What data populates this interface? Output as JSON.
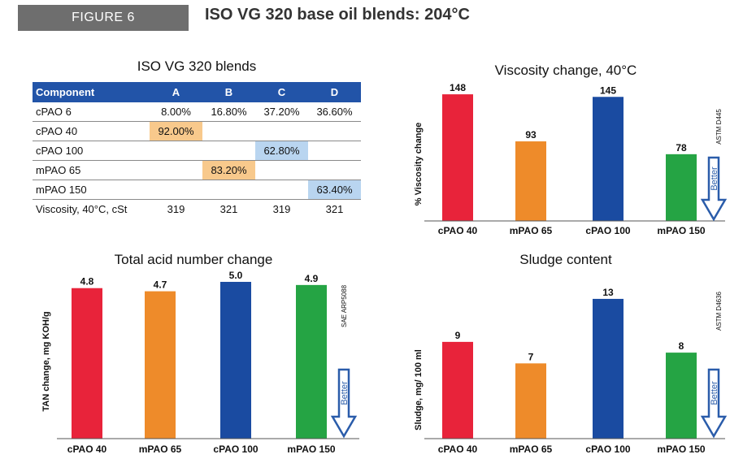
{
  "header": {
    "figure_label": "FIGURE 6",
    "title": "ISO VG 320 base oil blends: 204°C"
  },
  "table": {
    "title": "ISO VG 320 blends",
    "columns": [
      "Component",
      "A",
      "B",
      "C",
      "D"
    ],
    "rows": [
      {
        "label": "cPAO 6",
        "cells": [
          "8.00%",
          "16.80%",
          "37.20%",
          "36.60%"
        ],
        "highlight": [
          "",
          "",
          "",
          ""
        ]
      },
      {
        "label": "cPAO 40",
        "cells": [
          "92.00%",
          "",
          "",
          ""
        ],
        "highlight": [
          "orange",
          "",
          "",
          ""
        ]
      },
      {
        "label": "cPAO 100",
        "cells": [
          "",
          "",
          "62.80%",
          ""
        ],
        "highlight": [
          "",
          "",
          "blue",
          ""
        ]
      },
      {
        "label": "mPAO 65",
        "cells": [
          "",
          "83.20%",
          "",
          ""
        ],
        "highlight": [
          "",
          "orange",
          "",
          ""
        ]
      },
      {
        "label": "mPAO 150",
        "cells": [
          "",
          "",
          "",
          "63.40%"
        ],
        "highlight": [
          "",
          "",
          "",
          "blue"
        ]
      },
      {
        "label": "Viscosity, 40°C, cSt",
        "cells": [
          "319",
          "321",
          "319",
          "321"
        ],
        "highlight": [
          "",
          "",
          "",
          ""
        ]
      }
    ]
  },
  "colors": {
    "cPAO 40": "#e8233a",
    "mPAO 65": "#ee8b2a",
    "cPAO 100": "#1a4ba1",
    "mPAO 150": "#25a444",
    "arrow": "#2a5caa",
    "table_header": "#2254a8"
  },
  "chart_data": [
    {
      "id": "viscosity",
      "type": "bar",
      "title": "Viscosity change, 40°C",
      "ylabel": "% Viscosity change",
      "note": "ASTM D445",
      "arrow_label": "Better",
      "categories": [
        "cPAO 40",
        "mPAO 65",
        "cPAO 100",
        "mPAO 150"
      ],
      "values": [
        148,
        93,
        145,
        78
      ],
      "value_labels": [
        "148",
        "93",
        "145",
        "78"
      ],
      "ylim": [
        0,
        150
      ]
    },
    {
      "id": "tan",
      "type": "bar",
      "title": "Total acid number change",
      "ylabel": "TAN change, mg KOH/g",
      "note": "SAE ARP5088",
      "arrow_label": "Better",
      "categories": [
        "cPAO 40",
        "mPAO 65",
        "cPAO 100",
        "mPAO 150"
      ],
      "values": [
        4.8,
        4.7,
        5.0,
        4.9
      ],
      "value_labels": [
        "4.8",
        "4.7",
        "5.0",
        "4.9"
      ],
      "ylim": [
        0,
        5
      ]
    },
    {
      "id": "sludge",
      "type": "bar",
      "title": "Sludge content",
      "ylabel": "Sludge, mg/ 100 ml",
      "note": "ASTM D4636",
      "arrow_label": "Better",
      "categories": [
        "cPAO 40",
        "mPAO 65",
        "cPAO 100",
        "mPAO 150"
      ],
      "values": [
        9,
        7,
        13,
        8
      ],
      "value_labels": [
        "9",
        "7",
        "13",
        "8"
      ],
      "ylim": [
        0,
        13.6
      ]
    }
  ]
}
